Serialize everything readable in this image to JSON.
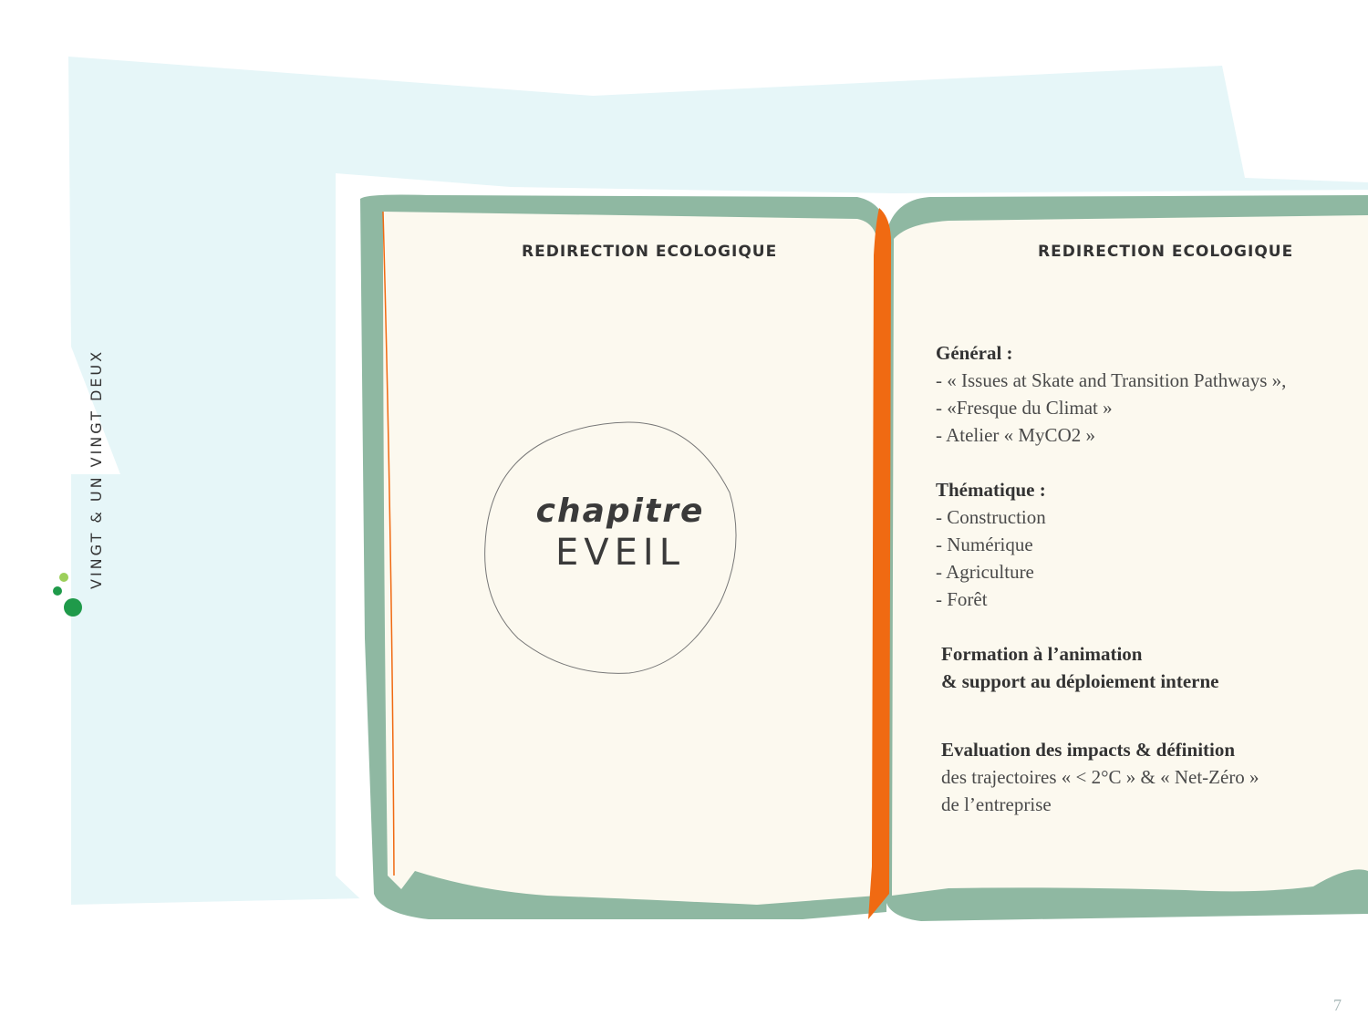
{
  "brand": {
    "name": "VINGT & UN VINGT DEUX"
  },
  "left_page": {
    "header": "REDIRECTION ECOLOGIQUE",
    "chapter_word": "chapitre",
    "chapter_title": "EVEIL"
  },
  "right_page": {
    "header": "REDIRECTION ECOLOGIQUE",
    "general_title": "Général :",
    "general_items": [
      "- « Issues at Skate and Transition Pathways »,",
      "- «Fresque du Climat »",
      "- Atelier « MyCO2 »"
    ],
    "thematique_title": "Thématique :",
    "thematique_items": [
      "- Construction",
      "- Numérique",
      "- Agriculture",
      "- Forêt"
    ],
    "formation_line1": "Formation à l’animation",
    "formation_line2": "& support au déploiement interne",
    "evaluation_title": "Evaluation des impacts & définition",
    "evaluation_line2": "des trajectoires « < 2°C » & « Net-Zéro »",
    "evaluation_line3": "de l’entreprise"
  },
  "page_number": "7",
  "colors": {
    "background_shape": "#e6f6f8",
    "cover": "#8fb8a2",
    "paper": "#fcf9ef",
    "ribbon": "#f06a12",
    "text": "#4a4a4a",
    "brand_dark_green": "#1f9a4a",
    "brand_light_green": "#9ccf5a"
  }
}
